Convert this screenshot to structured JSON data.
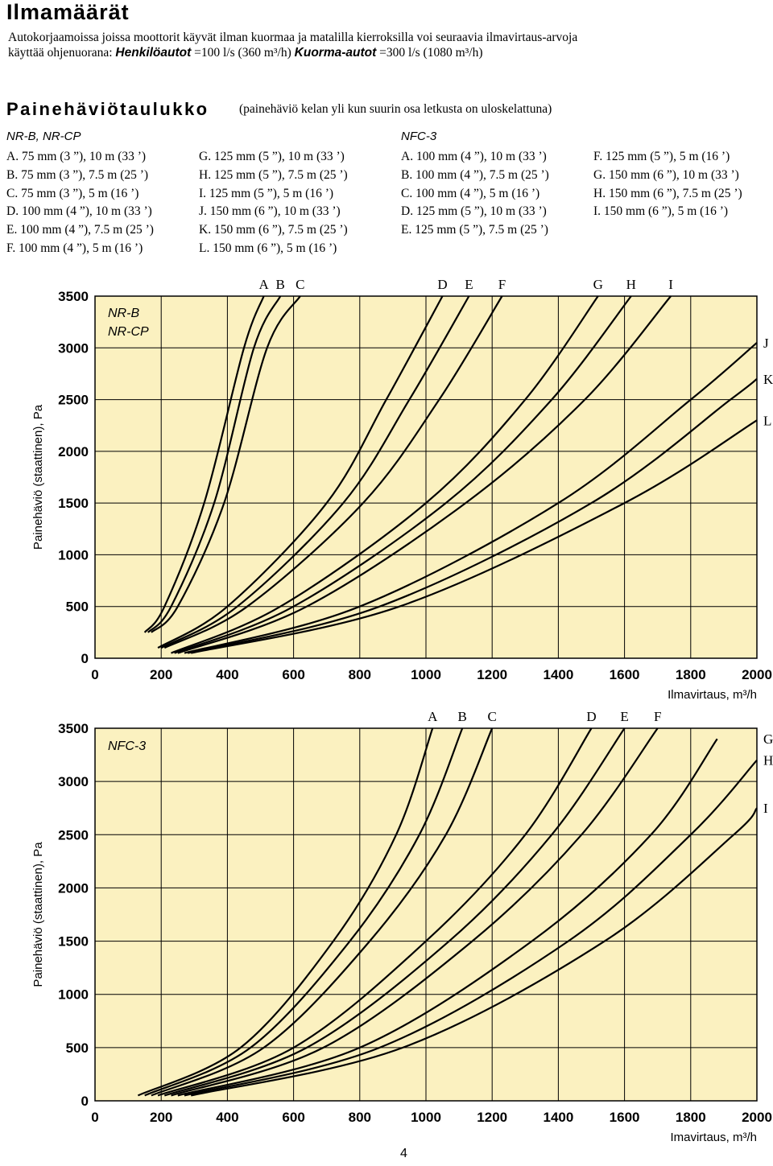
{
  "title": "Ilmamäärät",
  "intro": {
    "line1": "Autokorjaamoissa joissa moottorit käyvät ilman kuormaa ja matalilla kierroksilla voi seuraavia ilmavirtaus-arvoja",
    "line2_pre": "käyttää ohjenuorana: ",
    "cars_label": "Henkilöautot",
    "cars_value": " =100 l/s (360 m³/h) ",
    "trucks_label": "Kuorma-autot",
    "trucks_value": " =300 l/s (1080 m³/h)"
  },
  "table": {
    "heading": "Painehäviötaulukko",
    "note": "(painehäviö kelan yli kun suurin osa letkusta on uloskelattuna)",
    "nrb": {
      "title": "NR-B, NR-CP",
      "col1": [
        "A.  75 mm (3 ”), 10 m (33 ’)",
        "B.  75 mm (3 ”), 7.5 m (25 ’)",
        "C.  75 mm (3 ”), 5 m (16 ’)",
        "D.  100 mm (4 ”), 10 m (33 ’)",
        "E.  100 mm (4 ”), 7.5 m (25 ’)",
        "F.  100 mm (4 ”), 5 m (16 ’)"
      ],
      "col2": [
        "G. 125 mm (5 ”), 10 m (33 ’)",
        "H. 125 mm (5 ”), 7.5 m (25 ’)",
        "I.  125 mm (5 ”), 5 m (16 ’)",
        "J.  150 mm (6 ”), 10 m (33 ’)",
        "K. 150 mm (6 ”), 7.5 m (25 ’)",
        "L. 150 mm (6 ”), 5 m (16 ’)"
      ]
    },
    "nfc": {
      "title": "NFC-3",
      "col1": [
        "A.  100 mm (4 ”), 10 m (33 ’)",
        "B.  100 mm (4 ”), 7.5 m (25 ’)",
        "C.  100 mm (4 ”), 5 m (16 ’)",
        "D.  125 mm (5 ”), 10 m (33 ’)",
        "E.  125 mm (5 ”), 7.5 m (25 ’)"
      ],
      "col2": [
        "F.  125 mm (5 ”), 5 m (16 ’)",
        "G. 150 mm (6 ”), 10 m (33 ’)",
        "H. 150 mm (6 ”), 7.5 m (25 ’)",
        "I.  150 mm (6 ”), 5 m (16 ’)"
      ]
    }
  },
  "page_number": "4",
  "colors": {
    "plot_bg": "#fbf1c0",
    "grid": "#000000",
    "curve": "#000000"
  },
  "chart_data": [
    {
      "type": "line",
      "label": "NR-B\nNR-CP",
      "xlabel": "Ilmavirtaus, m³/h",
      "ylabel": "Painehäviö (staattinen), Pa",
      "xlim": [
        0,
        2000
      ],
      "ylim": [
        0,
        3500
      ],
      "xticks": [
        0,
        200,
        400,
        600,
        800,
        1000,
        1200,
        1400,
        1600,
        1800,
        2000
      ],
      "yticks": [
        0,
        500,
        1000,
        1500,
        2000,
        2500,
        3000,
        3500
      ],
      "grid": true,
      "series": [
        {
          "name": "A",
          "x": [
            150,
            210,
            330,
            450,
            510
          ],
          "y": [
            250,
            500,
            1500,
            3000,
            3500
          ]
        },
        {
          "name": "B",
          "x": [
            160,
            230,
            360,
            480,
            560
          ],
          "y": [
            250,
            500,
            1500,
            3000,
            3500
          ]
        },
        {
          "name": "C",
          "x": [
            170,
            250,
            390,
            520,
            620
          ],
          "y": [
            250,
            500,
            1500,
            3000,
            3500
          ]
        },
        {
          "name": "D",
          "x": [
            190,
            400,
            700,
            880,
            1050
          ],
          "y": [
            100,
            500,
            1500,
            2500,
            3500
          ]
        },
        {
          "name": "E",
          "x": [
            200,
            430,
            750,
            950,
            1130
          ],
          "y": [
            100,
            500,
            1500,
            2500,
            3500
          ]
        },
        {
          "name": "F",
          "x": [
            210,
            460,
            810,
            1040,
            1230
          ],
          "y": [
            100,
            500,
            1500,
            2500,
            3500
          ]
        },
        {
          "name": "G",
          "x": [
            230,
            560,
            1000,
            1300,
            1520
          ],
          "y": [
            50,
            500,
            1500,
            2500,
            3500
          ]
        },
        {
          "name": "H",
          "x": [
            240,
            600,
            1060,
            1380,
            1620
          ],
          "y": [
            50,
            500,
            1500,
            2500,
            3500
          ]
        },
        {
          "name": "I",
          "x": [
            250,
            640,
            1120,
            1480,
            1740
          ],
          "y": [
            50,
            500,
            1500,
            2500,
            3500
          ]
        },
        {
          "name": "J",
          "x": [
            270,
            800,
            1400,
            1800,
            2000
          ],
          "y": [
            50,
            500,
            1500,
            2500,
            3050
          ]
        },
        {
          "name": "K",
          "x": [
            280,
            860,
            1500,
            1920,
            2000
          ],
          "y": [
            50,
            500,
            1500,
            2500,
            2700
          ]
        },
        {
          "name": "L",
          "x": [
            290,
            920,
            1600,
            2000
          ],
          "y": [
            50,
            500,
            1500,
            2300
          ]
        }
      ]
    },
    {
      "type": "line",
      "label": "NFC-3",
      "xlabel": "Imavirtaus, m³/h",
      "ylabel": "Painehäviö (staattinen), Pa",
      "xlim": [
        0,
        2000
      ],
      "ylim": [
        0,
        3500
      ],
      "xticks": [
        0,
        200,
        400,
        600,
        800,
        1000,
        1200,
        1400,
        1600,
        1800,
        2000
      ],
      "yticks": [
        0,
        500,
        1000,
        1500,
        2000,
        2500,
        3000,
        3500
      ],
      "grid": true,
      "series": [
        {
          "name": "A",
          "x": [
            130,
            440,
            720,
            910,
            1020
          ],
          "y": [
            50,
            500,
            1500,
            2500,
            3500
          ]
        },
        {
          "name": "B",
          "x": [
            150,
            470,
            770,
            980,
            1110
          ],
          "y": [
            50,
            500,
            1500,
            2500,
            3500
          ]
        },
        {
          "name": "C",
          "x": [
            170,
            510,
            830,
            1060,
            1200
          ],
          "y": [
            50,
            500,
            1500,
            2500,
            3500
          ]
        },
        {
          "name": "D",
          "x": [
            190,
            600,
            1000,
            1300,
            1500
          ],
          "y": [
            50,
            500,
            1500,
            2500,
            3500
          ]
        },
        {
          "name": "E",
          "x": [
            210,
            640,
            1070,
            1380,
            1600
          ],
          "y": [
            50,
            500,
            1500,
            2500,
            3500
          ]
        },
        {
          "name": "F",
          "x": [
            230,
            690,
            1140,
            1470,
            1700
          ],
          "y": [
            50,
            500,
            1500,
            2500,
            3500
          ]
        },
        {
          "name": "G",
          "x": [
            250,
            800,
            1320,
            1680,
            1880
          ],
          "y": [
            50,
            500,
            1500,
            2500,
            3400
          ]
        },
        {
          "name": "H",
          "x": [
            270,
            860,
            1430,
            1800,
            2000
          ],
          "y": [
            50,
            500,
            1500,
            2500,
            3200
          ]
        },
        {
          "name": "I",
          "x": [
            290,
            930,
            1540,
            1930,
            2000
          ],
          "y": [
            50,
            500,
            1500,
            2500,
            2750
          ]
        }
      ]
    }
  ]
}
